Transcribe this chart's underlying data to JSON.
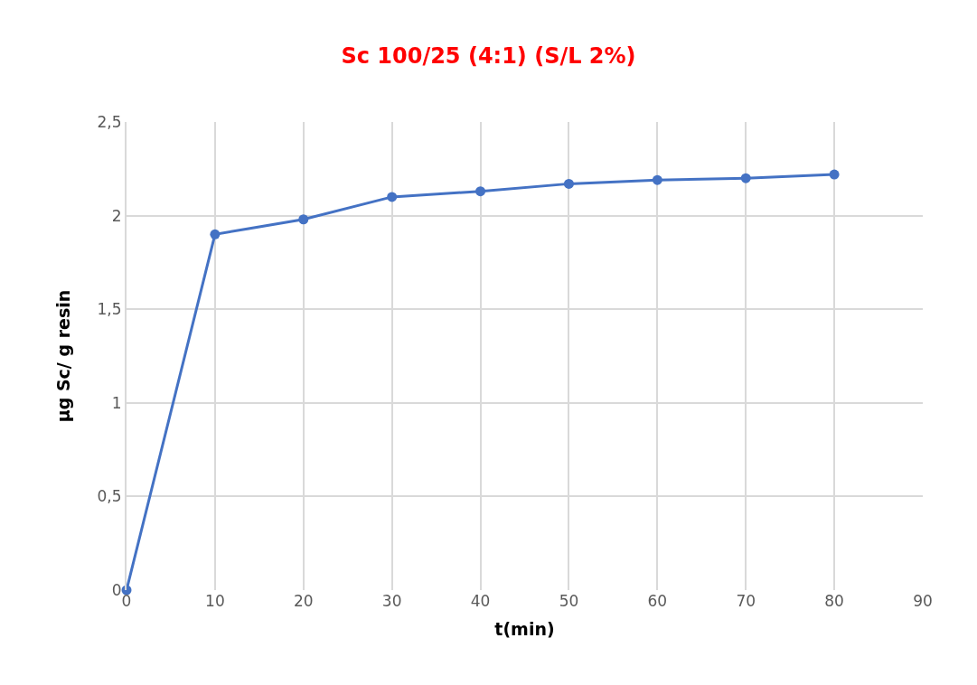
{
  "chart_data": {
    "type": "line",
    "title": "Sc 100/25 (4:1) (S/L 2%)",
    "xlabel": "t(min)",
    "ylabel": "µg Sc/ g resin",
    "x": [
      0,
      10,
      20,
      30,
      40,
      50,
      60,
      70,
      80
    ],
    "series": [
      {
        "color": "#4472c4",
        "values": [
          0,
          1.9,
          1.98,
          2.1,
          2.13,
          2.17,
          2.19,
          2.2,
          2.22
        ]
      }
    ],
    "xlim": [
      0,
      90
    ],
    "xticks": [
      0,
      10,
      20,
      30,
      40,
      50,
      60,
      70,
      80,
      90
    ],
    "ylim": [
      0,
      2.5
    ],
    "yticks": [
      {
        "value": 0,
        "label": "0"
      },
      {
        "value": 0.5,
        "label": "0,5"
      },
      {
        "value": 1,
        "label": "1"
      },
      {
        "value": 1.5,
        "label": "1,5"
      },
      {
        "value": 2,
        "label": "2"
      },
      {
        "value": 2.5,
        "label": "2,5"
      }
    ],
    "grid": true,
    "marker": "circle",
    "line_style": "solid",
    "legend": false
  }
}
